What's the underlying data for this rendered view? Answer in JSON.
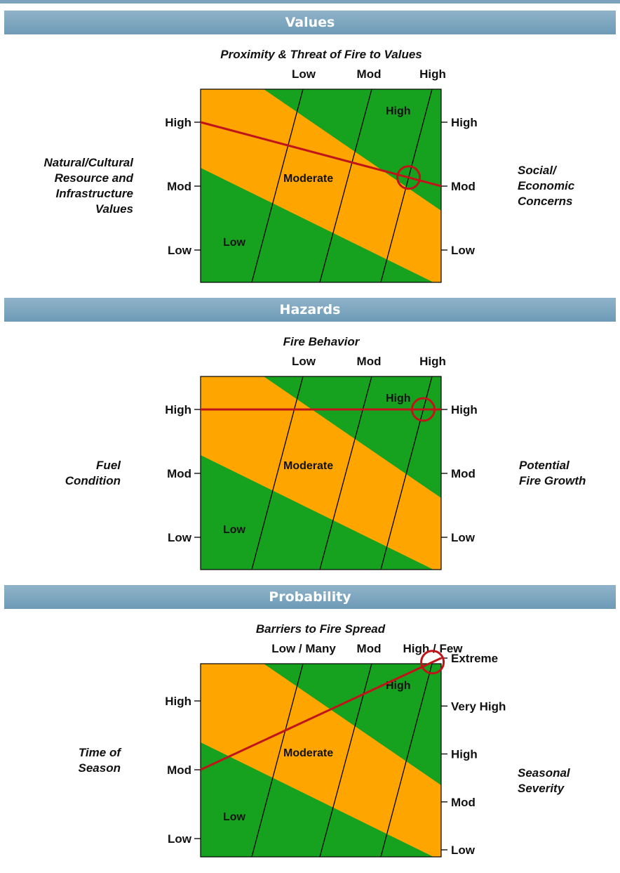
{
  "colors": {
    "green": "#16a21f",
    "orange": "#ffa500",
    "indicator": "#c0141b",
    "band": "#7da3bc"
  },
  "zones": [
    "Low",
    "Moderate",
    "High"
  ],
  "panels": [
    {
      "section": "Values",
      "top_title": "Proximity & Threat of Fire to Values",
      "top_ticks": [
        "Low",
        "Mod",
        "High"
      ],
      "left_title": [
        "Natural/Cultural",
        "Resource and",
        "Infrastructure",
        "Values"
      ],
      "right_title": [
        "Social/",
        "Economic",
        "Concerns"
      ],
      "left_ticks": [
        "High",
        "Mod",
        "Low"
      ],
      "right_ticks": [
        "High",
        "Mod",
        "Low"
      ],
      "rating": {
        "left": "High",
        "right": "Mod",
        "top": "High"
      }
    },
    {
      "section": "Hazards",
      "top_title": "Fire Behavior",
      "top_ticks": [
        "Low",
        "Mod",
        "High"
      ],
      "left_title": [
        "Fuel",
        "Condition"
      ],
      "right_title": [
        "Potential",
        "Fire Growth"
      ],
      "left_ticks": [
        "High",
        "Mod",
        "Low"
      ],
      "right_ticks": [
        "High",
        "Mod",
        "Low"
      ],
      "rating": {
        "left": "High",
        "right": "High",
        "top": "High"
      }
    },
    {
      "section": "Probability",
      "top_title": "Barriers to Fire Spread",
      "top_ticks": [
        "Low / Many",
        "Mod",
        "High / Few"
      ],
      "left_title": [
        "Time of",
        "Season"
      ],
      "right_title": [
        "Seasonal",
        "Severity"
      ],
      "left_ticks": [
        "High",
        "Mod",
        "Low"
      ],
      "right_ticks": [
        "Extreme",
        "Very High",
        "High",
        "Mod",
        "Low"
      ],
      "rating": {
        "left": "Mod",
        "right": "Extreme",
        "top": "High / Few"
      }
    }
  ]
}
